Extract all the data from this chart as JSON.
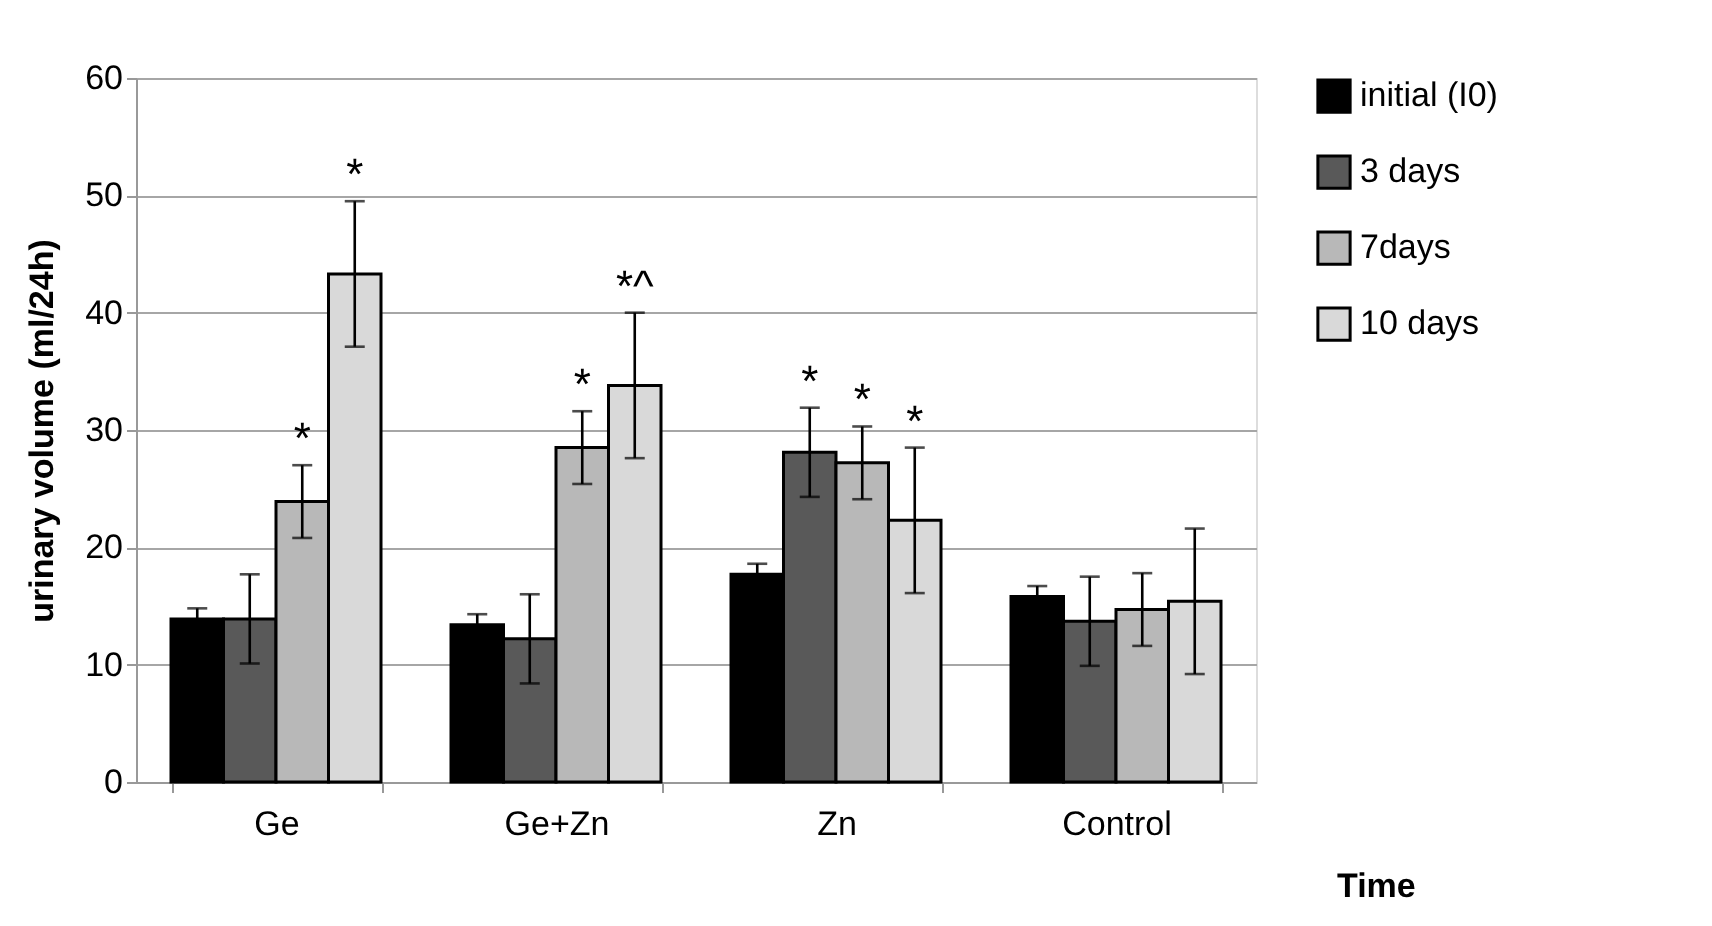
{
  "chart_data": {
    "type": "bar",
    "ylabel": "urinary volume (ml/24h)",
    "xlabel": "Time",
    "categories": [
      "Ge",
      "Ge+Zn",
      "Zn",
      "Control"
    ],
    "series": [
      {
        "name": "initial (I0)",
        "color": "#000000",
        "values": [
          13.9,
          13.4,
          17.7,
          15.8
        ],
        "errors": [
          0.9,
          0.9,
          0.9,
          0.9
        ],
        "value_labels": [
          null,
          null,
          null,
          null
        ]
      },
      {
        "name": "3 days",
        "color": "#595959",
        "values": [
          13.9,
          12.2,
          28.1,
          13.7
        ],
        "errors": [
          3.8,
          3.8,
          3.8,
          3.8
        ],
        "value_labels": [
          null,
          null,
          "*",
          null
        ]
      },
      {
        "name": "7days",
        "color": "#b8b8b8",
        "values": [
          23.9,
          28.5,
          27.2,
          14.7
        ],
        "errors": [
          3.1,
          3.1,
          3.1,
          3.1
        ],
        "value_labels": [
          "*",
          "*",
          "*",
          null
        ]
      },
      {
        "name": "10 days",
        "color": "#d9d9d9",
        "values": [
          43.3,
          33.8,
          22.3,
          15.4
        ],
        "errors": [
          6.2,
          6.2,
          6.2,
          6.2
        ],
        "value_labels": [
          "*",
          "*^",
          "*",
          null
        ]
      }
    ],
    "ylim": [
      0,
      60
    ],
    "yticks": [
      0,
      10,
      20,
      30,
      40,
      50,
      60
    ],
    "grid": "y",
    "legend": "right"
  }
}
